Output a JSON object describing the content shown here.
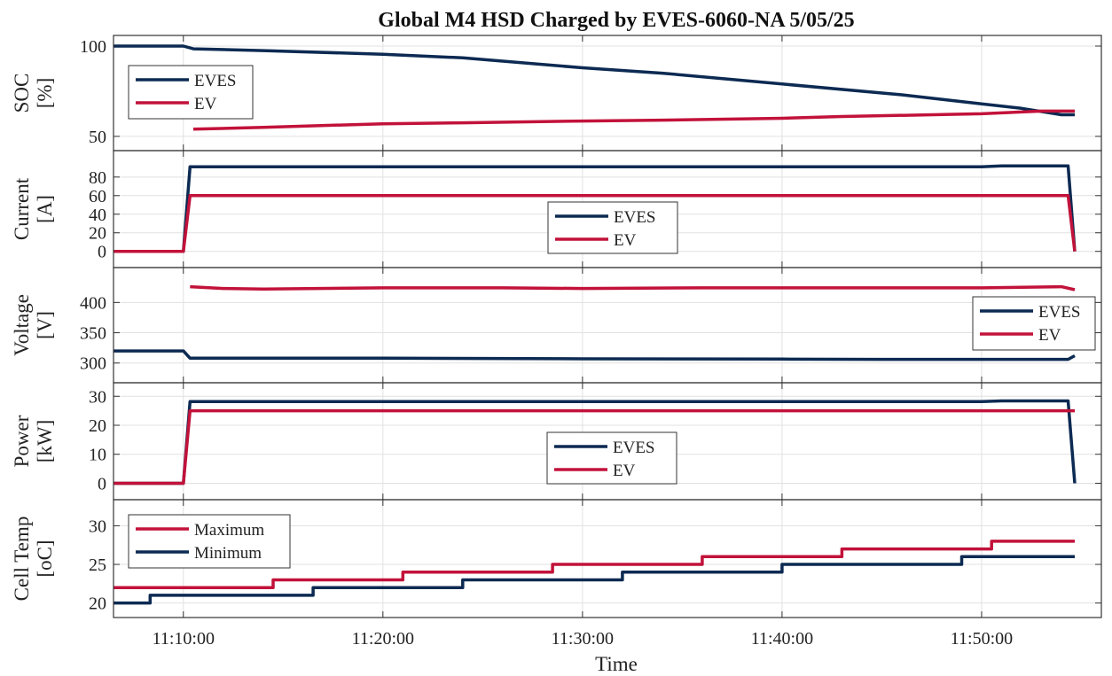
{
  "chart_data": {
    "type": "line",
    "title": "Global M4 HSD Charged by EVES-6060-NA 5/05/25",
    "xlabel": "Time",
    "x_ticks": [
      "11:10:00",
      "11:20:00",
      "11:30:00",
      "11:40:00",
      "11:50:00"
    ],
    "x_range": [
      "11:06:30",
      "11:56:00"
    ],
    "grid": true,
    "colors": {
      "EVES": "#0c2a52",
      "EV": "#c2123a",
      "Maximum": "#c2123a",
      "Minimum": "#0c2a52"
    },
    "panels": [
      {
        "id": "soc",
        "ylabel_lines": [
          "SOC",
          "[%]"
        ],
        "ylim": [
          48,
          100
        ],
        "yticks": [
          50,
          100
        ],
        "legend_position": "top-left",
        "series": [
          {
            "name": "EVES",
            "points": [
              [
                "11:06:30",
                100
              ],
              [
                "11:10:00",
                100
              ],
              [
                "11:10:30",
                98.5
              ],
              [
                "11:14:00",
                97.5
              ],
              [
                "11:20:00",
                95.5
              ],
              [
                "11:24:00",
                93.5
              ],
              [
                "11:30:00",
                88
              ],
              [
                "11:34:00",
                85
              ],
              [
                "11:40:00",
                79
              ],
              [
                "11:46:00",
                73
              ],
              [
                "11:50:00",
                68
              ],
              [
                "11:52:00",
                65.5
              ],
              [
                "11:54:00",
                62
              ],
              [
                "11:54:40",
                62
              ]
            ]
          },
          {
            "name": "EV",
            "points": [
              [
                "11:10:30",
                54
              ],
              [
                "11:14:00",
                55
              ],
              [
                "11:20:00",
                57
              ],
              [
                "11:24:00",
                57.5
              ],
              [
                "11:30:00",
                58.5
              ],
              [
                "11:34:00",
                59
              ],
              [
                "11:40:00",
                60
              ],
              [
                "11:43:00",
                61
              ],
              [
                "11:50:00",
                62.5
              ],
              [
                "11:53:00",
                64
              ],
              [
                "11:54:40",
                64
              ]
            ]
          }
        ]
      },
      {
        "id": "current",
        "ylabel_lines": [
          "Current",
          "[A]"
        ],
        "ylim": [
          -6,
          97
        ],
        "yticks": [
          0,
          20,
          40,
          60,
          80
        ],
        "legend_position": "middle",
        "series": [
          {
            "name": "EVES",
            "points": [
              [
                "11:06:30",
                0
              ],
              [
                "11:10:00",
                0
              ],
              [
                "11:10:20",
                91
              ],
              [
                "11:50:00",
                91
              ],
              [
                "11:51:00",
                92
              ],
              [
                "11:54:20",
                92
              ],
              [
                "11:54:40",
                0
              ]
            ]
          },
          {
            "name": "EV",
            "points": [
              [
                "11:06:30",
                0
              ],
              [
                "11:10:00",
                0
              ],
              [
                "11:10:20",
                60
              ],
              [
                "11:54:20",
                60
              ],
              [
                "11:54:40",
                0
              ]
            ]
          }
        ]
      },
      {
        "id": "voltage",
        "ylabel_lines": [
          "Voltage",
          "[V]"
        ],
        "ylim": [
          285,
          440
        ],
        "yticks": [
          300,
          350,
          400
        ],
        "legend_position": "right",
        "series": [
          {
            "name": "EVES",
            "points": [
              [
                "11:06:30",
                320
              ],
              [
                "11:10:00",
                320
              ],
              [
                "11:10:20",
                308
              ],
              [
                "11:20:00",
                308
              ],
              [
                "11:30:00",
                307
              ],
              [
                "11:40:00",
                306.5
              ],
              [
                "11:45:00",
                306
              ],
              [
                "11:54:20",
                306
              ],
              [
                "11:54:40",
                312
              ]
            ]
          },
          {
            "name": "EV",
            "points": [
              [
                "11:10:20",
                426
              ],
              [
                "11:12:00",
                423
              ],
              [
                "11:14:00",
                422
              ],
              [
                "11:20:00",
                424
              ],
              [
                "11:26:00",
                424
              ],
              [
                "11:30:00",
                423
              ],
              [
                "11:36:00",
                424
              ],
              [
                "11:40:00",
                424
              ],
              [
                "11:46:00",
                424
              ],
              [
                "11:50:00",
                424
              ],
              [
                "11:54:00",
                426
              ],
              [
                "11:54:40",
                421
              ]
            ]
          }
        ]
      },
      {
        "id": "power",
        "ylabel_lines": [
          "Power",
          "[kW]"
        ],
        "ylim": [
          -2,
          31
        ],
        "yticks": [
          0,
          10,
          20,
          30
        ],
        "legend_position": "middle",
        "series": [
          {
            "name": "EVES",
            "points": [
              [
                "11:06:30",
                0
              ],
              [
                "11:10:00",
                0
              ],
              [
                "11:10:20",
                28.2
              ],
              [
                "11:50:00",
                28.2
              ],
              [
                "11:51:00",
                28.4
              ],
              [
                "11:54:20",
                28.4
              ],
              [
                "11:54:40",
                0
              ]
            ]
          },
          {
            "name": "EV",
            "points": [
              [
                "11:06:30",
                0
              ],
              [
                "11:10:00",
                0
              ],
              [
                "11:10:20",
                25
              ],
              [
                "11:54:40",
                25
              ]
            ]
          }
        ]
      },
      {
        "id": "celltemp",
        "ylabel_lines": [
          "Cell Temp",
          "[oC]"
        ],
        "ylim": [
          19.5,
          32
        ],
        "yticks": [
          20,
          25,
          30
        ],
        "legend_position": "top-left",
        "step": true,
        "series": [
          {
            "name": "Maximum",
            "points": [
              [
                "11:06:30",
                22
              ],
              [
                "11:14:30",
                23
              ],
              [
                "11:21:00",
                24
              ],
              [
                "11:28:30",
                25
              ],
              [
                "11:36:00",
                26
              ],
              [
                "11:43:00",
                27
              ],
              [
                "11:50:30",
                28
              ],
              [
                "11:54:40",
                28
              ]
            ]
          },
          {
            "name": "Minimum",
            "points": [
              [
                "11:06:30",
                20
              ],
              [
                "11:08:20",
                21
              ],
              [
                "11:16:30",
                22
              ],
              [
                "11:24:00",
                23
              ],
              [
                "11:32:00",
                24
              ],
              [
                "11:40:00",
                25
              ],
              [
                "11:49:00",
                26
              ],
              [
                "11:54:40",
                26
              ]
            ]
          }
        ]
      }
    ]
  }
}
